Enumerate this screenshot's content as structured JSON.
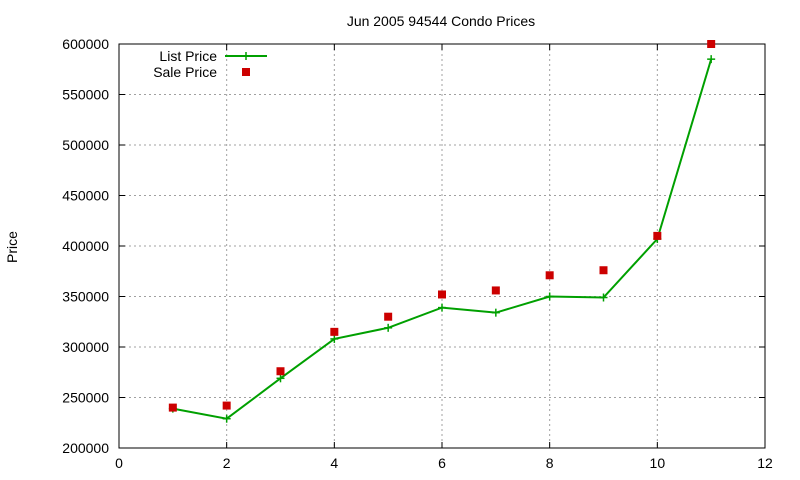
{
  "chart_data": {
    "type": "line",
    "title": "Jun 2005 94544 Condo Prices",
    "xlabel": "",
    "ylabel": "Price",
    "xlim": [
      0,
      12
    ],
    "ylim": [
      200000,
      600000
    ],
    "x_ticks": [
      0,
      2,
      4,
      6,
      8,
      10,
      12
    ],
    "y_ticks": [
      200000,
      250000,
      300000,
      350000,
      400000,
      450000,
      500000,
      550000,
      600000
    ],
    "grid": true,
    "legend_position": "top-left",
    "series": [
      {
        "name": "List Price",
        "style": "line-with-plus-markers",
        "color": "#00a000",
        "x": [
          1,
          2,
          3,
          4,
          5,
          6,
          7,
          8,
          9,
          10,
          11
        ],
        "y": [
          239000,
          229000,
          269000,
          308000,
          319000,
          339000,
          334000,
          350000,
          349000,
          407000,
          585000
        ]
      },
      {
        "name": "Sale Price",
        "style": "square-markers",
        "color": "#cc0000",
        "x": [
          1,
          2,
          3,
          4,
          5,
          6,
          7,
          8,
          9,
          10,
          11
        ],
        "y": [
          240000,
          242000,
          276000,
          315000,
          330000,
          352000,
          356000,
          371000,
          376000,
          410000,
          600000
        ]
      }
    ]
  }
}
